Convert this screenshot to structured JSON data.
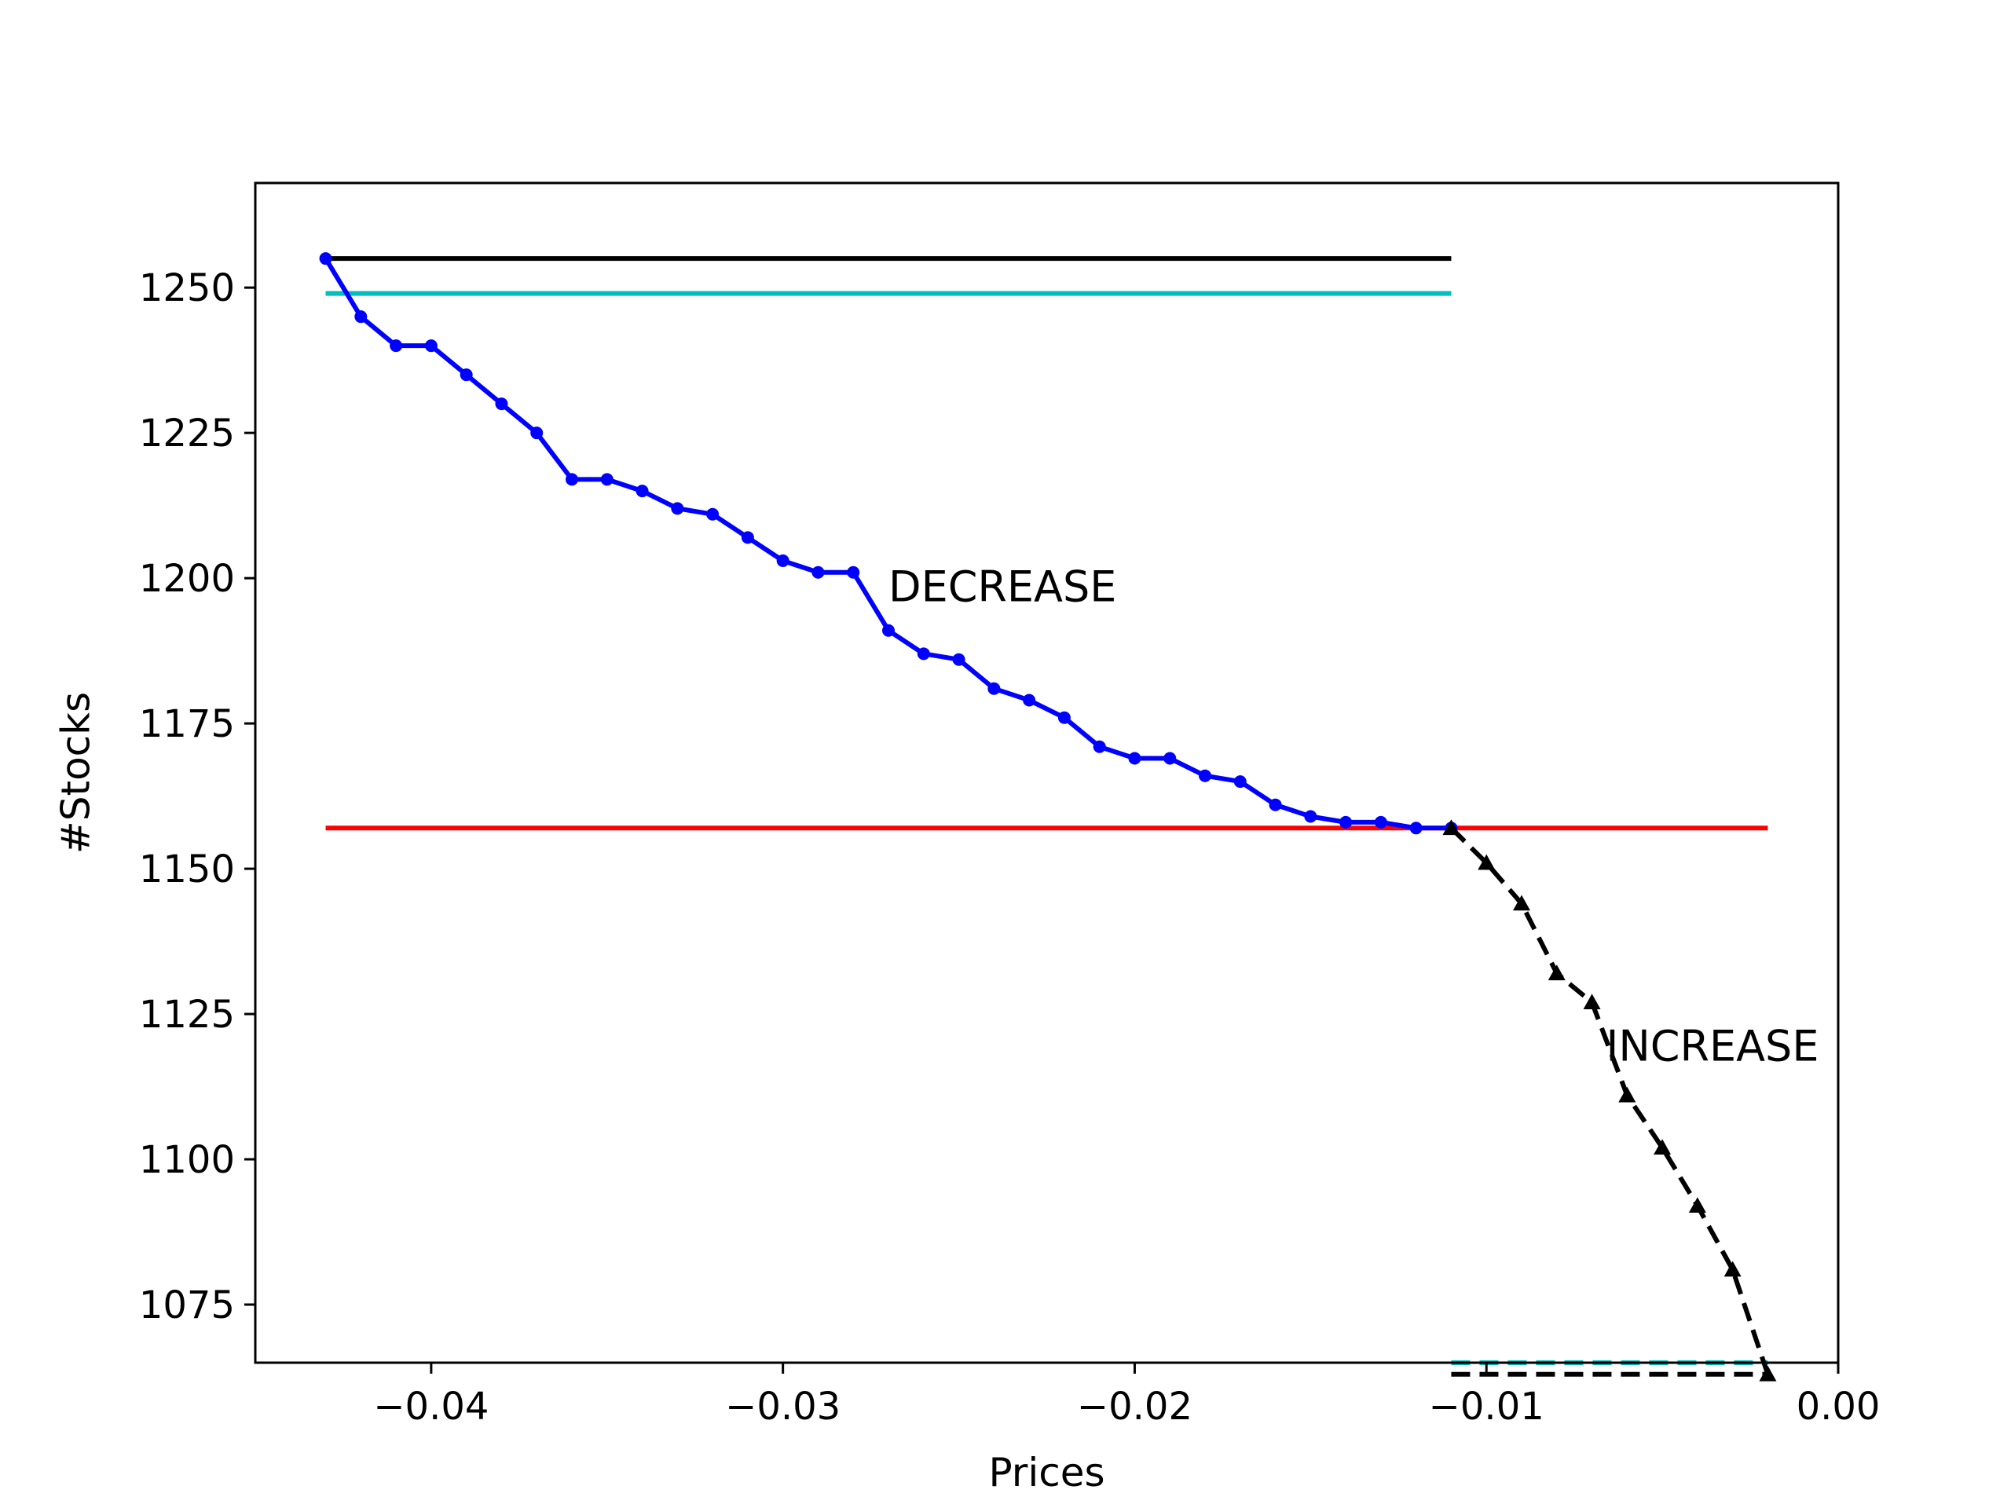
{
  "chart_data": {
    "type": "line",
    "title": "",
    "xlabel": "Prices",
    "ylabel": "#Stocks",
    "xlim": [
      -0.045,
      0.0
    ],
    "ylim": [
      1065,
      1268
    ],
    "xticks": [
      -0.04,
      -0.03,
      -0.02,
      -0.01,
      0.0
    ],
    "xtick_labels": [
      "−0.04",
      "−0.03",
      "−0.02",
      "−0.01",
      "0.00"
    ],
    "yticks": [
      1075,
      1100,
      1125,
      1150,
      1175,
      1200,
      1225,
      1250
    ],
    "ytick_labels": [
      "1075",
      "1100",
      "1125",
      "1150",
      "1175",
      "1200",
      "1225",
      "1250"
    ],
    "grid": false,
    "legend": "none",
    "series": [
      {
        "style": "solid-line-dot-markers",
        "color": "#0000ff",
        "x": [
          -0.043,
          -0.042,
          -0.041,
          -0.04,
          -0.039,
          -0.038,
          -0.037,
          -0.036,
          -0.035,
          -0.034,
          -0.033,
          -0.032,
          -0.031,
          -0.03,
          -0.029,
          -0.028,
          -0.027,
          -0.026,
          -0.025,
          -0.024,
          -0.023,
          -0.022,
          -0.021,
          -0.02,
          -0.019,
          -0.018,
          -0.017,
          -0.016,
          -0.015,
          -0.014,
          -0.013,
          -0.012,
          -0.011
        ],
        "y": [
          1255,
          1245,
          1240,
          1240,
          1235,
          1230,
          1225,
          1217,
          1217,
          1215,
          1212,
          1211,
          1207,
          1203,
          1201,
          1201,
          1191,
          1187,
          1186,
          1181,
          1179,
          1176,
          1171,
          1169,
          1169,
          1166,
          1165,
          1161,
          1159,
          1158,
          1158,
          1157,
          1157
        ]
      },
      {
        "style": "dashed-line-triangle-markers",
        "color": "#000000",
        "x": [
          -0.011,
          -0.01,
          -0.009,
          -0.008,
          -0.007,
          -0.006,
          -0.005,
          -0.004,
          -0.003,
          -0.002
        ],
        "y": [
          1157,
          1151,
          1144,
          1132,
          1127,
          1111,
          1102,
          1092,
          1081,
          1063
        ]
      }
    ],
    "reference_lines": [
      {
        "style": "solid",
        "color": "#000000",
        "y": 1255,
        "x_from": -0.043,
        "x_to": -0.011
      },
      {
        "style": "solid",
        "color": "#00bfbf",
        "y": 1249,
        "x_from": -0.043,
        "x_to": -0.011
      },
      {
        "style": "solid",
        "color": "#ff0000",
        "y": 1157,
        "x_from": -0.043,
        "x_to": -0.002
      },
      {
        "style": "dashed",
        "color": "#00bfbf",
        "y": 1065,
        "x_from": -0.011,
        "x_to": -0.002
      },
      {
        "style": "dashed",
        "color": "#000000",
        "y": 1063,
        "x_from": -0.011,
        "x_to": -0.002
      }
    ],
    "annotations": [
      {
        "text": "DECREASE",
        "x": -0.027,
        "y": 1196
      },
      {
        "text": "INCREASE",
        "x": -0.0066,
        "y": 1117
      }
    ]
  }
}
